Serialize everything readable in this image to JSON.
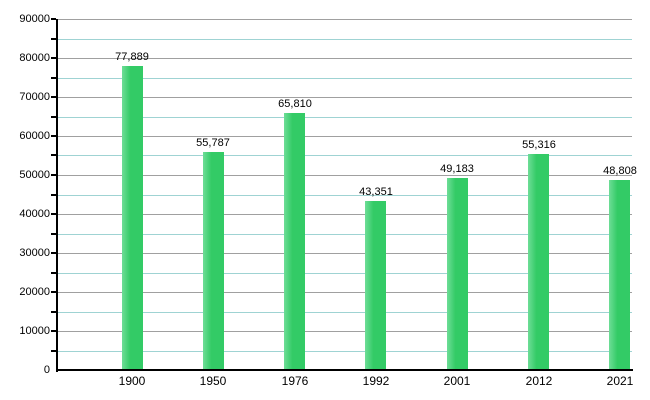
{
  "chart_data": {
    "type": "bar",
    "title": "",
    "xlabel": "",
    "ylabel": "",
    "categories": [
      "1900",
      "1950",
      "1976",
      "1992",
      "2001",
      "2012",
      "2021"
    ],
    "values": [
      77889,
      55787,
      65810,
      43351,
      49183,
      55316,
      48808
    ],
    "value_labels": [
      "77,889",
      "55,787",
      "65,810",
      "43,351",
      "49,183",
      "55,316",
      "48,808"
    ],
    "ylim": [
      0,
      90000
    ],
    "y_major_step": 10000,
    "y_minor_step": 5000,
    "y_tick_labels": [
      "0",
      "10000",
      "20000",
      "30000",
      "40000",
      "50000",
      "60000",
      "70000",
      "80000",
      "90000"
    ],
    "grid": "horizontal-major-and-minor",
    "legend": "none",
    "colors": {
      "bar_fill": "#33cb66",
      "bar_fill_highlight": "#6edd97",
      "gridline_major": "#a0a0a0",
      "gridline_minor": "#9fd3d3",
      "axis": "#000000",
      "text": "#000000",
      "background": "#ffffff"
    }
  }
}
